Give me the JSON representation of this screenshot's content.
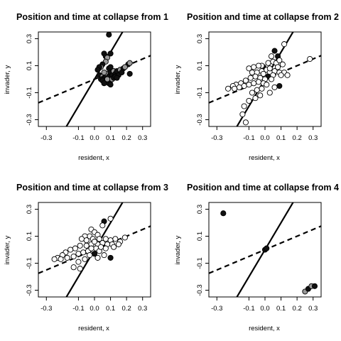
{
  "chart_data": [
    {
      "type": "scatter",
      "title": "Position and time at collapse from  1",
      "xlabel": "resident, x",
      "ylabel": "invader, y",
      "xlim": [
        -0.35,
        0.35
      ],
      "ylim": [
        -0.35,
        0.35
      ],
      "xticks": [
        "-0.3",
        "-0.1",
        "0.0",
        "0.1",
        "0.2",
        "0.3"
      ],
      "yticks": [
        "-0.3",
        "-0.1",
        "0.1",
        "0.3"
      ],
      "lines": [
        {
          "style": "solid",
          "slope": 2.0,
          "intercept": 0.0
        },
        {
          "style": "dashed",
          "slope": 0.5,
          "intercept": 0.0
        }
      ],
      "points": [
        {
          "x": 0.09,
          "y": 0.33,
          "fill": "black"
        },
        {
          "x": 0.06,
          "y": 0.19,
          "fill": "black"
        },
        {
          "x": 0.07,
          "y": 0.17,
          "fill": "black"
        },
        {
          "x": 0.08,
          "y": 0.16,
          "fill": "gray"
        },
        {
          "x": 0.1,
          "y": 0.19,
          "fill": "black"
        },
        {
          "x": 0.07,
          "y": 0.13,
          "fill": "gray"
        },
        {
          "x": 0.05,
          "y": 0.11,
          "fill": "black"
        },
        {
          "x": 0.04,
          "y": 0.09,
          "fill": "gray"
        },
        {
          "x": 0.03,
          "y": 0.09,
          "fill": "black"
        },
        {
          "x": 0.02,
          "y": 0.07,
          "fill": "black"
        },
        {
          "x": 0.03,
          "y": 0.03,
          "fill": "black"
        },
        {
          "x": 0.05,
          "y": 0.02,
          "fill": "gray"
        },
        {
          "x": 0.06,
          "y": 0.01,
          "fill": "black"
        },
        {
          "x": 0.07,
          "y": 0.03,
          "fill": "black"
        },
        {
          "x": 0.08,
          "y": 0.04,
          "fill": "gray"
        },
        {
          "x": 0.09,
          "y": 0.02,
          "fill": "black"
        },
        {
          "x": 0.1,
          "y": 0.05,
          "fill": "black"
        },
        {
          "x": 0.11,
          "y": 0.03,
          "fill": "black"
        },
        {
          "x": 0.12,
          "y": 0.06,
          "fill": "gray"
        },
        {
          "x": 0.13,
          "y": 0.04,
          "fill": "black"
        },
        {
          "x": 0.14,
          "y": 0.06,
          "fill": "black"
        },
        {
          "x": 0.16,
          "y": 0.07,
          "fill": "gray"
        },
        {
          "x": 0.18,
          "y": 0.08,
          "fill": "black"
        },
        {
          "x": 0.21,
          "y": 0.11,
          "fill": "black"
        },
        {
          "x": 0.22,
          "y": 0.12,
          "fill": "gray"
        },
        {
          "x": 0.22,
          "y": 0.04,
          "fill": "black"
        },
        {
          "x": 0.04,
          "y": 0.0,
          "fill": "black"
        },
        {
          "x": 0.05,
          "y": -0.01,
          "fill": "black"
        },
        {
          "x": 0.07,
          "y": -0.02,
          "fill": "gray"
        },
        {
          "x": 0.08,
          "y": -0.01,
          "fill": "black"
        },
        {
          "x": 0.09,
          "y": -0.03,
          "fill": "black"
        },
        {
          "x": 0.1,
          "y": -0.01,
          "fill": "black"
        },
        {
          "x": 0.11,
          "y": 0.0,
          "fill": "gray"
        },
        {
          "x": 0.12,
          "y": 0.01,
          "fill": "black"
        },
        {
          "x": 0.13,
          "y": 0.02,
          "fill": "black"
        },
        {
          "x": 0.15,
          "y": 0.03,
          "fill": "black"
        },
        {
          "x": 0.17,
          "y": 0.05,
          "fill": "black"
        },
        {
          "x": 0.06,
          "y": 0.05,
          "fill": "gray"
        },
        {
          "x": 0.09,
          "y": 0.08,
          "fill": "black"
        },
        {
          "x": 0.1,
          "y": 0.09,
          "fill": "black"
        },
        {
          "x": 0.06,
          "y": -0.03,
          "fill": "black"
        },
        {
          "x": 0.1,
          "y": -0.04,
          "fill": "black"
        },
        {
          "x": 0.08,
          "y": 0.0,
          "fill": "gray"
        },
        {
          "x": 0.14,
          "y": 0.01,
          "fill": "black"
        },
        {
          "x": 0.19,
          "y": 0.09,
          "fill": "gray"
        }
      ]
    },
    {
      "type": "scatter",
      "title": "Position and time at collapse from  2",
      "xlabel": "resident, x",
      "ylabel": "invader, y",
      "xlim": [
        -0.35,
        0.35
      ],
      "ylim": [
        -0.35,
        0.35
      ],
      "xticks": [
        "-0.3",
        "-0.1",
        "0.0",
        "0.1",
        "0.2",
        "0.3"
      ],
      "yticks": [
        "-0.3",
        "-0.1",
        "0.1",
        "0.3"
      ],
      "lines": [
        {
          "style": "solid",
          "slope": 2.0,
          "intercept": 0.0
        },
        {
          "style": "dashed",
          "slope": 0.5,
          "intercept": 0.0
        }
      ],
      "points": [
        {
          "x": 0.12,
          "y": 0.26,
          "fill": "white"
        },
        {
          "x": 0.28,
          "y": 0.15,
          "fill": "white"
        },
        {
          "x": 0.06,
          "y": 0.21,
          "fill": "black"
        },
        {
          "x": 0.08,
          "y": 0.17,
          "fill": "black"
        },
        {
          "x": 0.04,
          "y": 0.17,
          "fill": "white"
        },
        {
          "x": 0.02,
          "y": 0.12,
          "fill": "white"
        },
        {
          "x": 0.05,
          "y": 0.13,
          "fill": "white"
        },
        {
          "x": 0.07,
          "y": 0.12,
          "fill": "white"
        },
        {
          "x": 0.09,
          "y": 0.14,
          "fill": "white"
        },
        {
          "x": -0.01,
          "y": 0.09,
          "fill": "black"
        },
        {
          "x": -0.02,
          "y": 0.1,
          "fill": "white"
        },
        {
          "x": -0.04,
          "y": 0.1,
          "fill": "white"
        },
        {
          "x": -0.07,
          "y": 0.09,
          "fill": "white"
        },
        {
          "x": -0.1,
          "y": 0.08,
          "fill": "white"
        },
        {
          "x": -0.08,
          "y": 0.05,
          "fill": "white"
        },
        {
          "x": -0.05,
          "y": 0.05,
          "fill": "white"
        },
        {
          "x": -0.02,
          "y": 0.06,
          "fill": "white"
        },
        {
          "x": 0.01,
          "y": 0.07,
          "fill": "white"
        },
        {
          "x": 0.03,
          "y": 0.05,
          "fill": "white"
        },
        {
          "x": 0.06,
          "y": 0.06,
          "fill": "white"
        },
        {
          "x": 0.09,
          "y": 0.05,
          "fill": "white"
        },
        {
          "x": 0.12,
          "y": 0.05,
          "fill": "white"
        },
        {
          "x": 0.1,
          "y": 0.03,
          "fill": "white"
        },
        {
          "x": 0.05,
          "y": 0.03,
          "fill": "white"
        },
        {
          "x": 0.02,
          "y": 0.02,
          "fill": "black"
        },
        {
          "x": 0.0,
          "y": 0.0,
          "fill": "white"
        },
        {
          "x": -0.03,
          "y": 0.01,
          "fill": "white"
        },
        {
          "x": -0.06,
          "y": 0.02,
          "fill": "white"
        },
        {
          "x": -0.09,
          "y": 0.01,
          "fill": "white"
        },
        {
          "x": -0.12,
          "y": -0.01,
          "fill": "white"
        },
        {
          "x": -0.15,
          "y": -0.03,
          "fill": "white"
        },
        {
          "x": -0.18,
          "y": -0.04,
          "fill": "white"
        },
        {
          "x": -0.2,
          "y": -0.05,
          "fill": "white"
        },
        {
          "x": -0.23,
          "y": -0.07,
          "fill": "white"
        },
        {
          "x": -0.19,
          "y": -0.07,
          "fill": "white"
        },
        {
          "x": -0.16,
          "y": -0.06,
          "fill": "white"
        },
        {
          "x": -0.13,
          "y": -0.05,
          "fill": "white"
        },
        {
          "x": -0.1,
          "y": -0.04,
          "fill": "white"
        },
        {
          "x": -0.07,
          "y": -0.03,
          "fill": "white"
        },
        {
          "x": -0.04,
          "y": -0.02,
          "fill": "white"
        },
        {
          "x": -0.01,
          "y": -0.03,
          "fill": "white"
        },
        {
          "x": 0.01,
          "y": -0.04,
          "fill": "white"
        },
        {
          "x": -0.02,
          "y": -0.07,
          "fill": "white"
        },
        {
          "x": -0.05,
          "y": -0.08,
          "fill": "white"
        },
        {
          "x": -0.08,
          "y": -0.1,
          "fill": "white"
        },
        {
          "x": -0.03,
          "y": -0.12,
          "fill": "white"
        },
        {
          "x": -0.06,
          "y": -0.14,
          "fill": "white"
        },
        {
          "x": -0.1,
          "y": -0.16,
          "fill": "white"
        },
        {
          "x": -0.13,
          "y": -0.2,
          "fill": "white"
        },
        {
          "x": -0.14,
          "y": -0.26,
          "fill": "white"
        },
        {
          "x": -0.12,
          "y": -0.32,
          "fill": "white"
        },
        {
          "x": 0.03,
          "y": -0.1,
          "fill": "white"
        },
        {
          "x": 0.06,
          "y": -0.06,
          "fill": "white"
        },
        {
          "x": 0.09,
          "y": -0.05,
          "fill": "black"
        },
        {
          "x": 0.14,
          "y": 0.03,
          "fill": "white"
        },
        {
          "x": 0.08,
          "y": 0.09,
          "fill": "white"
        },
        {
          "x": 0.11,
          "y": 0.11,
          "fill": "white"
        },
        {
          "x": 0.03,
          "y": 0.08,
          "fill": "white"
        },
        {
          "x": -0.01,
          "y": 0.04,
          "fill": "white"
        },
        {
          "x": 0.04,
          "y": 0.0,
          "fill": "white"
        }
      ]
    },
    {
      "type": "scatter",
      "title": "Position and time at collapse from  3",
      "xlabel": "resident, x",
      "ylabel": "invader, y",
      "xlim": [
        -0.35,
        0.35
      ],
      "ylim": [
        -0.35,
        0.35
      ],
      "xticks": [
        "-0.3",
        "-0.1",
        "0.0",
        "0.1",
        "0.2",
        "0.3"
      ],
      "yticks": [
        "-0.3",
        "-0.1",
        "0.1",
        "0.3"
      ],
      "lines": [
        {
          "style": "solid",
          "slope": 2.0,
          "intercept": 0.0
        },
        {
          "style": "dashed",
          "slope": 0.5,
          "intercept": 0.0
        }
      ],
      "points": [
        {
          "x": 0.1,
          "y": 0.23,
          "fill": "white"
        },
        {
          "x": 0.06,
          "y": 0.21,
          "fill": "black"
        },
        {
          "x": 0.05,
          "y": 0.18,
          "fill": "white"
        },
        {
          "x": -0.02,
          "y": 0.15,
          "fill": "white"
        },
        {
          "x": 0.0,
          "y": 0.13,
          "fill": "white"
        },
        {
          "x": 0.02,
          "y": 0.11,
          "fill": "white"
        },
        {
          "x": -0.03,
          "y": 0.1,
          "fill": "white"
        },
        {
          "x": -0.06,
          "y": 0.1,
          "fill": "white"
        },
        {
          "x": -0.08,
          "y": 0.08,
          "fill": "white"
        },
        {
          "x": -0.05,
          "y": 0.07,
          "fill": "white"
        },
        {
          "x": -0.01,
          "y": 0.08,
          "fill": "white"
        },
        {
          "x": 0.03,
          "y": 0.08,
          "fill": "white"
        },
        {
          "x": 0.07,
          "y": 0.08,
          "fill": "white"
        },
        {
          "x": 0.1,
          "y": 0.07,
          "fill": "white"
        },
        {
          "x": 0.13,
          "y": 0.08,
          "fill": "white"
        },
        {
          "x": 0.16,
          "y": 0.06,
          "fill": "white"
        },
        {
          "x": 0.19,
          "y": 0.09,
          "fill": "white"
        },
        {
          "x": 0.11,
          "y": 0.04,
          "fill": "white"
        },
        {
          "x": 0.08,
          "y": 0.04,
          "fill": "white"
        },
        {
          "x": 0.05,
          "y": 0.05,
          "fill": "white"
        },
        {
          "x": 0.02,
          "y": 0.04,
          "fill": "white"
        },
        {
          "x": -0.02,
          "y": 0.04,
          "fill": "white"
        },
        {
          "x": -0.05,
          "y": 0.03,
          "fill": "white"
        },
        {
          "x": -0.09,
          "y": 0.03,
          "fill": "white"
        },
        {
          "x": -0.12,
          "y": 0.01,
          "fill": "white"
        },
        {
          "x": -0.15,
          "y": 0.0,
          "fill": "white"
        },
        {
          "x": -0.18,
          "y": -0.02,
          "fill": "white"
        },
        {
          "x": -0.2,
          "y": -0.04,
          "fill": "white"
        },
        {
          "x": -0.23,
          "y": -0.06,
          "fill": "white"
        },
        {
          "x": -0.25,
          "y": -0.07,
          "fill": "white"
        },
        {
          "x": -0.21,
          "y": -0.07,
          "fill": "white"
        },
        {
          "x": -0.17,
          "y": -0.06,
          "fill": "white"
        },
        {
          "x": -0.13,
          "y": -0.05,
          "fill": "white"
        },
        {
          "x": -0.1,
          "y": -0.03,
          "fill": "white"
        },
        {
          "x": -0.07,
          "y": -0.02,
          "fill": "white"
        },
        {
          "x": -0.04,
          "y": -0.01,
          "fill": "white"
        },
        {
          "x": -0.01,
          "y": 0.0,
          "fill": "white"
        },
        {
          "x": 0.01,
          "y": 0.01,
          "fill": "white"
        },
        {
          "x": 0.03,
          "y": -0.01,
          "fill": "white"
        },
        {
          "x": 0.0,
          "y": -0.03,
          "fill": "black"
        },
        {
          "x": -0.03,
          "y": -0.04,
          "fill": "white"
        },
        {
          "x": -0.06,
          "y": -0.07,
          "fill": "white"
        },
        {
          "x": -0.1,
          "y": -0.09,
          "fill": "white"
        },
        {
          "x": -0.13,
          "y": -0.13,
          "fill": "white"
        },
        {
          "x": -0.09,
          "y": -0.14,
          "fill": "white"
        },
        {
          "x": 0.02,
          "y": -0.06,
          "fill": "white"
        },
        {
          "x": 0.06,
          "y": -0.04,
          "fill": "white"
        },
        {
          "x": 0.1,
          "y": -0.06,
          "fill": "black"
        },
        {
          "x": 0.04,
          "y": 0.02,
          "fill": "white"
        },
        {
          "x": -0.02,
          "y": 0.01,
          "fill": "white"
        },
        {
          "x": 0.0,
          "y": 0.06,
          "fill": "white"
        },
        {
          "x": 0.07,
          "y": 0.01,
          "fill": "white"
        },
        {
          "x": 0.12,
          "y": 0.02,
          "fill": "white"
        },
        {
          "x": 0.15,
          "y": 0.04,
          "fill": "white"
        }
      ]
    },
    {
      "type": "scatter",
      "title": "Position and time at collapse from  4",
      "xlabel": "resident, x",
      "ylabel": "invader, y",
      "xlim": [
        -0.35,
        0.35
      ],
      "ylim": [
        -0.35,
        0.35
      ],
      "xticks": [
        "-0.3",
        "-0.1",
        "0.0",
        "0.1",
        "0.2",
        "0.3"
      ],
      "yticks": [
        "-0.3",
        "-0.1",
        "0.1",
        "0.3"
      ],
      "lines": [
        {
          "style": "solid",
          "slope": 2.0,
          "intercept": 0.0
        },
        {
          "style": "dashed",
          "slope": 0.5,
          "intercept": 0.0
        }
      ],
      "points": [
        {
          "x": -0.26,
          "y": 0.27,
          "fill": "black"
        },
        {
          "x": 0.0,
          "y": 0.0,
          "fill": "black"
        },
        {
          "x": 0.01,
          "y": 0.01,
          "fill": "black"
        },
        {
          "x": 0.25,
          "y": -0.31,
          "fill": "gray"
        },
        {
          "x": 0.27,
          "y": -0.29,
          "fill": "black"
        },
        {
          "x": 0.29,
          "y": -0.27,
          "fill": "gray"
        },
        {
          "x": 0.31,
          "y": -0.27,
          "fill": "black"
        }
      ]
    }
  ]
}
